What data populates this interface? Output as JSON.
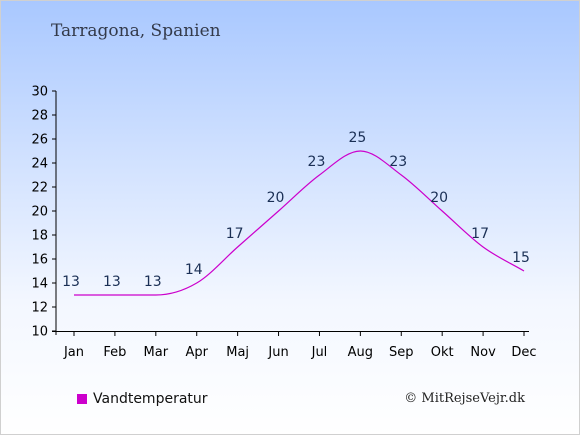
{
  "header": {
    "subtitle": "Tarragona, Spanien"
  },
  "chart_data": {
    "type": "line",
    "categories": [
      "Jan",
      "Feb",
      "Mar",
      "Apr",
      "Maj",
      "Jun",
      "Jul",
      "Aug",
      "Sep",
      "Okt",
      "Nov",
      "Dec"
    ],
    "series": [
      {
        "name": "Vandtemperatur",
        "values": [
          13,
          13,
          13,
          14,
          17,
          20,
          23,
          25,
          23,
          20,
          17,
          15
        ],
        "color": "#cc00cc"
      }
    ],
    "ylim": [
      10,
      30
    ],
    "yticks": [
      10,
      12,
      14,
      16,
      18,
      20,
      22,
      24,
      26,
      28,
      30
    ],
    "grid": false,
    "legend_position": "bottom-left"
  },
  "legend": {
    "label": "Vandtemperatur",
    "color": "#cc00cc"
  },
  "footer": {
    "credit": "© MitRejseVejr.dk"
  }
}
